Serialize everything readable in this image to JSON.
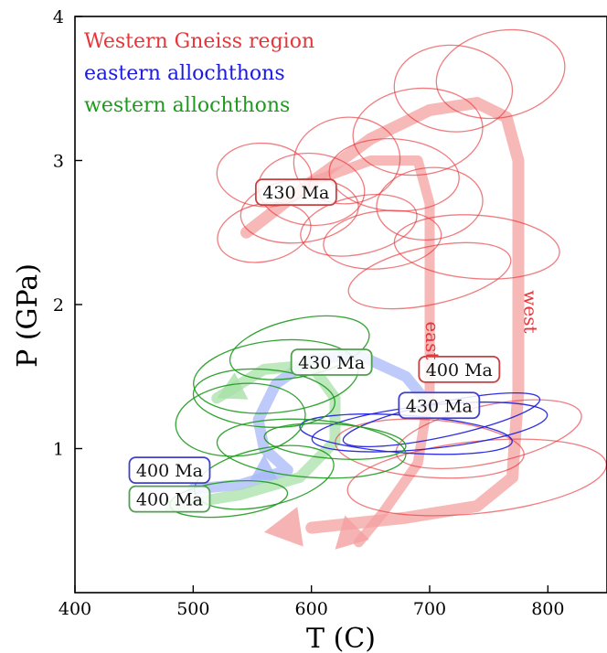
{
  "chart_data": {
    "type": "scatter",
    "title": "",
    "xlabel": "T (C)",
    "ylabel": "P (GPa)",
    "xlim": [
      400,
      850
    ],
    "ylim": [
      0,
      4
    ],
    "xticks": [
      400,
      500,
      600,
      700,
      800
    ],
    "yticks": [
      1,
      2,
      3,
      4
    ],
    "grid": false,
    "legend_position": "top-left",
    "series": [
      {
        "name": "Western Gneiss region",
        "color": "#e8353a",
        "ellipses": [
          {
            "cx": 630,
            "cy": 3.0,
            "rx": 45,
            "ry": 0.3
          },
          {
            "cx": 670,
            "cy": 2.9,
            "rx": 55,
            "ry": 0.25
          },
          {
            "cx": 560,
            "cy": 2.5,
            "rx": 40,
            "ry": 0.2
          },
          {
            "cx": 590,
            "cy": 2.65,
            "rx": 50,
            "ry": 0.22
          },
          {
            "cx": 600,
            "cy": 2.8,
            "rx": 45,
            "ry": 0.25
          },
          {
            "cx": 640,
            "cy": 2.55,
            "rx": 50,
            "ry": 0.2
          },
          {
            "cx": 700,
            "cy": 2.7,
            "rx": 45,
            "ry": 0.25
          },
          {
            "cx": 720,
            "cy": 3.5,
            "rx": 50,
            "ry": 0.3
          },
          {
            "cx": 760,
            "cy": 3.6,
            "rx": 55,
            "ry": 0.3
          },
          {
            "cx": 690,
            "cy": 3.2,
            "rx": 55,
            "ry": 0.3
          },
          {
            "cx": 740,
            "cy": 2.4,
            "rx": 70,
            "ry": 0.22
          },
          {
            "cx": 700,
            "cy": 2.2,
            "rx": 70,
            "ry": 0.2
          },
          {
            "cx": 660,
            "cy": 2.45,
            "rx": 50,
            "ry": 0.2
          },
          {
            "cx": 560,
            "cy": 2.9,
            "rx": 40,
            "ry": 0.22
          },
          {
            "cx": 750,
            "cy": 1.1,
            "rx": 80,
            "ry": 0.2
          },
          {
            "cx": 740,
            "cy": 0.8,
            "rx": 110,
            "ry": 0.25
          },
          {
            "cx": 700,
            "cy": 1.0,
            "rx": 80,
            "ry": 0.2
          }
        ]
      },
      {
        "name": "eastern allochthons",
        "color": "#1a1ae0",
        "ellipses": [
          {
            "cx": 700,
            "cy": 1.15,
            "rx": 100,
            "ry": 0.15
          },
          {
            "cx": 680,
            "cy": 1.1,
            "rx": 90,
            "ry": 0.13
          },
          {
            "cx": 710,
            "cy": 1.2,
            "rx": 85,
            "ry": 0.12
          }
        ]
      },
      {
        "name": "western allochthons",
        "color": "#1e9a1e",
        "ellipses": [
          {
            "cx": 570,
            "cy": 1.5,
            "rx": 70,
            "ry": 0.25
          },
          {
            "cx": 560,
            "cy": 1.35,
            "rx": 60,
            "ry": 0.2
          },
          {
            "cx": 590,
            "cy": 1.7,
            "rx": 60,
            "ry": 0.2
          },
          {
            "cx": 540,
            "cy": 1.2,
            "rx": 55,
            "ry": 0.25
          },
          {
            "cx": 600,
            "cy": 1.0,
            "rx": 80,
            "ry": 0.2
          },
          {
            "cx": 560,
            "cy": 0.8,
            "rx": 60,
            "ry": 0.2
          },
          {
            "cx": 530,
            "cy": 0.65,
            "rx": 50,
            "ry": 0.12
          },
          {
            "cx": 620,
            "cy": 1.05,
            "rx": 60,
            "ry": 0.12
          }
        ]
      }
    ],
    "paths": [
      {
        "name": "west",
        "color": "#f4a0a0",
        "from": "430 Ma",
        "to": "400 Ma"
      },
      {
        "name": "east",
        "color": "#f4a0a0"
      },
      {
        "name": "eastern allochthons path",
        "color": "#a8b8f8"
      },
      {
        "name": "western allochthons path",
        "color": "#a8e0a8"
      }
    ],
    "annotations": [
      {
        "text": "430 Ma",
        "x": 587,
        "y": 2.78,
        "border": "#c84040"
      },
      {
        "text": "430 Ma",
        "x": 617,
        "y": 1.6,
        "border": "#50a050"
      },
      {
        "text": "400 Ma",
        "x": 725,
        "y": 1.55,
        "border": "#c84040"
      },
      {
        "text": "430 Ma",
        "x": 708,
        "y": 1.3,
        "border": "#4040c8"
      },
      {
        "text": "400 Ma",
        "x": 480,
        "y": 0.85,
        "border": "#4040c8"
      },
      {
        "text": "400 Ma",
        "x": 480,
        "y": 0.65,
        "border": "#50a050"
      },
      {
        "text": "west",
        "x": 780,
        "y": 1.95,
        "color": "#e8353a"
      },
      {
        "text": "east",
        "x": 697,
        "y": 1.75,
        "color": "#e8353a"
      }
    ]
  }
}
